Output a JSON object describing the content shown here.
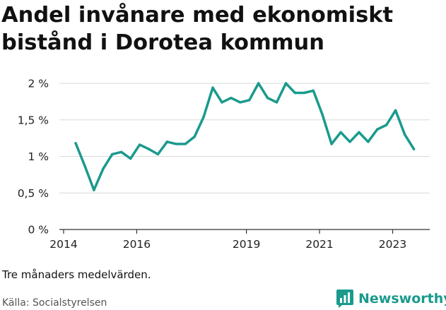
{
  "header": {
    "title_line1": "Andel invånare med ekonomiskt",
    "title_line2": "bistånd i Dorotea kommun"
  },
  "footer": {
    "note": "Tre månaders medelvärden.",
    "source": "Källa: Socialstyrelsen",
    "brand": "Newsworthy",
    "brand_icon": "bar-chart-speech-bubble-icon"
  },
  "colors": {
    "line": "#1a9a8c",
    "grid": "#d9d9d9",
    "baseline": "#333333",
    "brand": "#1a9a8c"
  },
  "chart_data": {
    "type": "line",
    "title": "Andel invånare med ekonomiskt bistånd i Dorotea kommun",
    "xlabel": "",
    "ylabel": "",
    "ylim": [
      0,
      2
    ],
    "xlim": [
      2014.0,
      2024.0
    ],
    "grid": true,
    "legend": "none",
    "y_ticks": [
      {
        "value": 0,
        "label": "0 %"
      },
      {
        "value": 0.5,
        "label": "0,5 %"
      },
      {
        "value": 1,
        "label": "1 %"
      },
      {
        "value": 1.5,
        "label": "1,5 %"
      },
      {
        "value": 2,
        "label": "2 %"
      }
    ],
    "x_ticks": [
      {
        "value": 2014,
        "label": "2014"
      },
      {
        "value": 2016,
        "label": "2016"
      },
      {
        "value": 2019,
        "label": "2019"
      },
      {
        "value": 2021,
        "label": "2021"
      },
      {
        "value": 2023,
        "label": "2023"
      }
    ],
    "series": [
      {
        "x": [
          2014.33,
          2014.58,
          2014.83,
          2015.08,
          2015.33,
          2015.58,
          2015.83,
          2016.08,
          2016.33,
          2016.58,
          2016.83,
          2017.08,
          2017.33,
          2017.58,
          2017.83,
          2018.08,
          2018.33,
          2018.58,
          2018.83,
          2019.08,
          2019.33,
          2019.58,
          2019.83,
          2020.08,
          2020.33,
          2020.58,
          2020.83,
          2021.08,
          2021.33,
          2021.58,
          2021.83,
          2022.08,
          2022.33,
          2022.58,
          2022.83,
          2023.08,
          2023.33,
          2023.58
        ],
        "values": [
          1.18,
          0.87,
          0.54,
          0.83,
          1.03,
          1.06,
          0.97,
          1.16,
          1.1,
          1.03,
          1.2,
          1.17,
          1.17,
          1.27,
          1.54,
          1.94,
          1.74,
          1.8,
          1.74,
          1.77,
          2.0,
          1.8,
          1.74,
          2.0,
          1.87,
          1.87,
          1.9,
          1.57,
          1.17,
          1.33,
          1.2,
          1.33,
          1.2,
          1.37,
          1.43,
          1.63,
          1.3,
          1.1
        ]
      }
    ]
  }
}
